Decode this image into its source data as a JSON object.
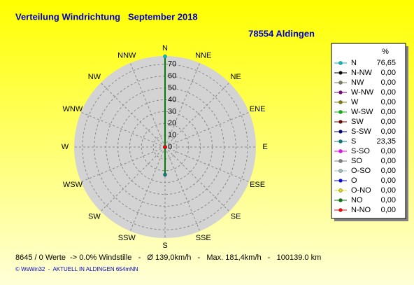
{
  "chart_data": {
    "type": "radar",
    "title": "Verteilung Windrichtung   September 2018",
    "subtitle": "78554 Aldingen",
    "categories": [
      "N",
      "NNW",
      "NW",
      "WNW",
      "W",
      "WSW",
      "SW",
      "SSW",
      "S",
      "SSE",
      "SE",
      "ESE",
      "E",
      "ENE",
      "NE",
      "NNE"
    ],
    "legend_names": [
      "N",
      "N-NW",
      "NW",
      "W-NW",
      "W",
      "W-SW",
      "SW",
      "S-SW",
      "S",
      "S-SO",
      "SO",
      "O-SO",
      "O",
      "O-NO",
      "NO",
      "N-NO"
    ],
    "legend_colors": [
      "#00c0c0",
      "#000000",
      "#808060",
      "#800080",
      "#808000",
      "#00c000",
      "#800000",
      "#000080",
      "#008080",
      "#ff00ff",
      "#808080",
      "#a0c0c0",
      "#0000ff",
      "#e0e000",
      "#008000",
      "#ff0000"
    ],
    "legend_header": "%",
    "values": [
      76.65,
      0,
      0,
      0,
      0,
      0,
      0,
      0,
      23.35,
      0,
      0,
      0,
      0,
      0,
      0,
      0
    ],
    "value_labels": [
      "76,65",
      "0,00",
      "0,00",
      "0,00",
      "0,00",
      "0,00",
      "0,00",
      "0,00",
      "23,35",
      "0,00",
      "0,00",
      "0,00",
      "0,00",
      "0,00",
      "0,00",
      "0,00"
    ],
    "color": "#008000",
    "rlim": [
      0,
      77
    ],
    "rticks": [
      0,
      10,
      20,
      30,
      40,
      50,
      60,
      70
    ],
    "grid": true,
    "footer": "8645 / 0 Werte  -> 0.0% Windstille   -   Ø 139,0km/h   -   Max. 181,4km/h   -   100139.0 km",
    "credit": "© WsWin32  -  AKTUELL IN ALDINGEN 654mNN"
  }
}
